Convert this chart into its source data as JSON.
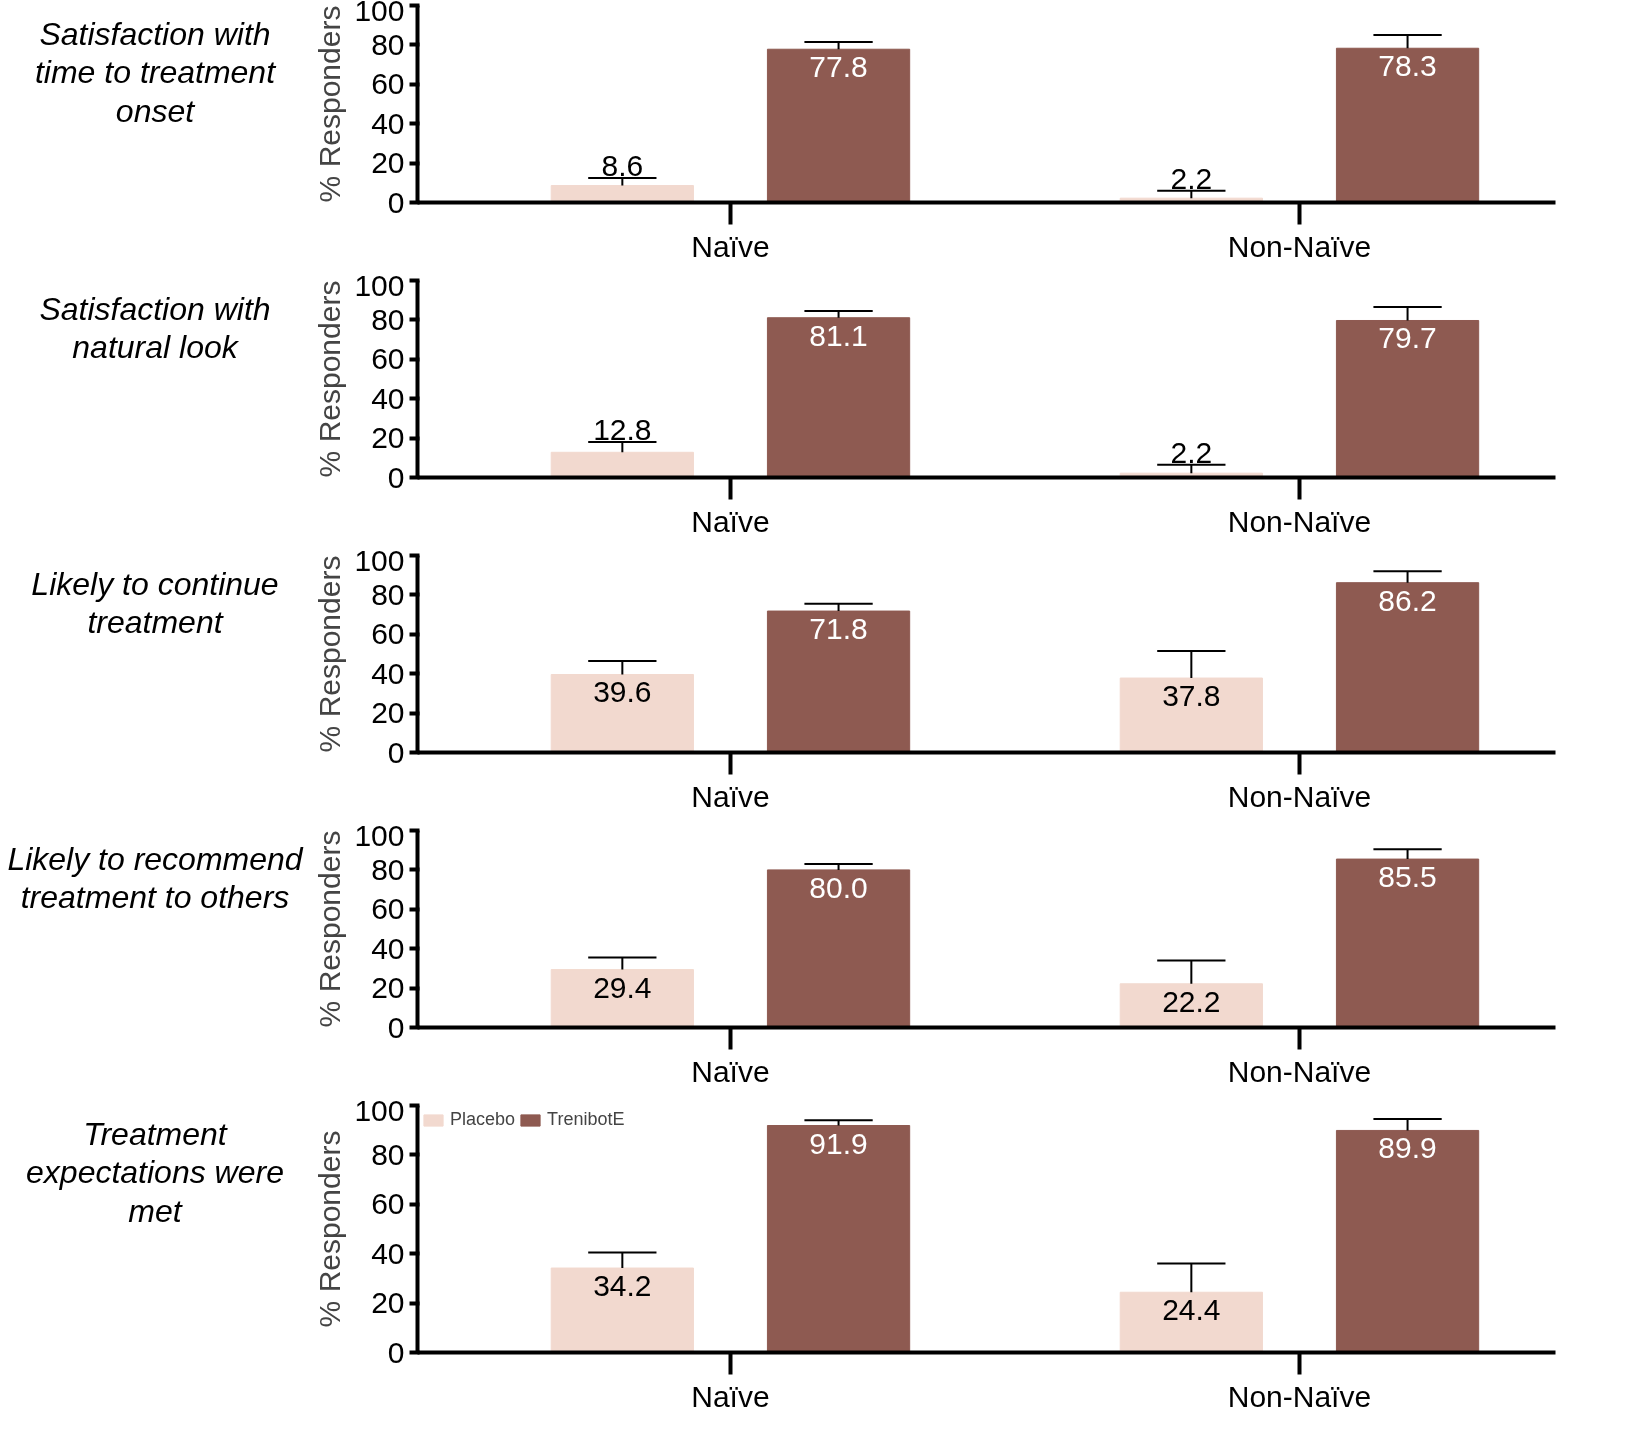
{
  "chart_data": [
    {
      "type": "bar",
      "title": "Satisfaction with time to treatment onset",
      "ylabel": "% Responders",
      "categories": [
        "Naïve",
        "Non-Naïve"
      ],
      "ylim": [
        0,
        100
      ],
      "yticks": [
        0,
        20,
        40,
        60,
        80,
        100
      ],
      "grid": false,
      "series": [
        {
          "color": "#f2d9cf",
          "values": [
            8.6,
            2.2
          ],
          "value_labels": [
            "8.6",
            "2.2"
          ],
          "errors": [
            [
              8.6,
              12.5
            ],
            [
              2.2,
              6
            ]
          ]
        },
        {
          "color": "#8e5a51",
          "values": [
            77.8,
            78.3
          ],
          "value_labels": [
            "77.8",
            "78.3"
          ],
          "errors": [
            [
              77.8,
              81.5
            ],
            [
              78.3,
              85
            ]
          ]
        }
      ]
    },
    {
      "type": "bar",
      "title": "Satisfaction with natural look",
      "ylabel": "% Responders",
      "categories": [
        "Naïve",
        "Non-Naïve"
      ],
      "ylim": [
        0,
        100
      ],
      "yticks": [
        0,
        20,
        40,
        60,
        80,
        100
      ],
      "grid": false,
      "series": [
        {
          "color": "#f2d9cf",
          "values": [
            12.8,
            2.2
          ],
          "value_labels": [
            "12.8",
            "2.2"
          ],
          "errors": [
            [
              12.8,
              18
            ],
            [
              2.2,
              6.5
            ]
          ]
        },
        {
          "color": "#8e5a51",
          "values": [
            81.1,
            79.7
          ],
          "value_labels": [
            "81.1",
            "79.7"
          ],
          "errors": [
            [
              81.1,
              84.5
            ],
            [
              79.7,
              86.5
            ]
          ]
        }
      ]
    },
    {
      "type": "bar",
      "title": "Likely to continue treatment",
      "ylabel": "% Responders",
      "categories": [
        "Naïve",
        "Non-Naïve"
      ],
      "ylim": [
        0,
        100
      ],
      "yticks": [
        0,
        20,
        40,
        60,
        80,
        100
      ],
      "grid": false,
      "series": [
        {
          "color": "#f2d9cf",
          "values": [
            39.6,
            37.8
          ],
          "value_labels": [
            "39.6",
            "37.8"
          ],
          "errors": [
            [
              39.6,
              46.5
            ],
            [
              37.8,
              51.5
            ]
          ]
        },
        {
          "color": "#8e5a51",
          "values": [
            71.8,
            86.2
          ],
          "value_labels": [
            "71.8",
            "86.2"
          ],
          "errors": [
            [
              71.8,
              75.5
            ],
            [
              86.2,
              92
            ]
          ]
        }
      ]
    },
    {
      "type": "bar",
      "title": "Likely to recommend treatment to others",
      "ylabel": "% Responders",
      "categories": [
        "Naïve",
        "Non-Naïve"
      ],
      "ylim": [
        0,
        100
      ],
      "yticks": [
        0,
        20,
        40,
        60,
        80,
        100
      ],
      "grid": false,
      "series": [
        {
          "color": "#f2d9cf",
          "values": [
            29.4,
            22.2
          ],
          "value_labels": [
            "29.4",
            "22.2"
          ],
          "errors": [
            [
              29.4,
              35.5
            ],
            [
              22.2,
              34
            ]
          ]
        },
        {
          "color": "#8e5a51",
          "values": [
            80.0,
            85.5
          ],
          "value_labels": [
            "80.0",
            "85.5"
          ],
          "errors": [
            [
              80.0,
              83
            ],
            [
              85.5,
              90.5
            ]
          ]
        }
      ]
    },
    {
      "type": "bar",
      "title": "Treatment expectations were met",
      "ylabel": "% Responders",
      "categories": [
        "Naïve",
        "Non-Naïve"
      ],
      "ylim": [
        0,
        100
      ],
      "yticks": [
        0,
        20,
        40,
        60,
        80,
        100
      ],
      "grid": false,
      "legend": "top left",
      "series": [
        {
          "name": "Placebo",
          "color": "#f2d9cf",
          "values": [
            34.2,
            24.4
          ],
          "value_labels": [
            "34.2",
            "24.4"
          ],
          "errors": [
            [
              34.2,
              40.5
            ],
            [
              24.4,
              36
            ]
          ]
        },
        {
          "name": "TrenibotE",
          "color": "#8e5a51",
          "values": [
            91.9,
            89.9
          ],
          "value_labels": [
            "91.9",
            "89.9"
          ],
          "errors": [
            [
              91.9,
              94
            ],
            [
              89.9,
              94.5
            ]
          ]
        }
      ]
    }
  ]
}
